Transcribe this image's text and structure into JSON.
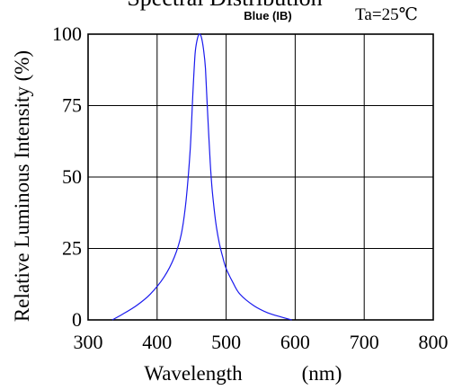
{
  "chart_data": {
    "type": "line",
    "title": "Spectral Distribution",
    "series_label": "Blue (IB)",
    "condition": "Ta=25℃",
    "xlabel": "Wavelength",
    "xlabel_unit": "(nm)",
    "ylabel": "Relative Luminous Intensity (%)",
    "xlim": [
      300,
      800
    ],
    "ylim": [
      0,
      100
    ],
    "xticks": [
      "300",
      "400",
      "500",
      "600",
      "700",
      "800"
    ],
    "yticks": [
      "0",
      "25",
      "50",
      "75",
      "100"
    ],
    "grid": true,
    "line_color": "#1a1aee",
    "series": [
      {
        "x": [
          335,
          350,
          370,
          390,
          410,
          425,
          435,
          442,
          448,
          452,
          455,
          458,
          461,
          464,
          467,
          470,
          473,
          477,
          480,
          485,
          490,
          495,
          500,
          510,
          520,
          540,
          560,
          580,
          595
        ],
        "y": [
          0,
          2,
          5,
          9,
          15,
          22,
          30,
          42,
          60,
          80,
          93,
          98,
          100,
          99,
          95,
          88,
          73,
          55,
          45,
          34,
          27,
          22,
          18,
          13,
          9,
          5,
          2.5,
          1,
          0
        ]
      }
    ]
  }
}
